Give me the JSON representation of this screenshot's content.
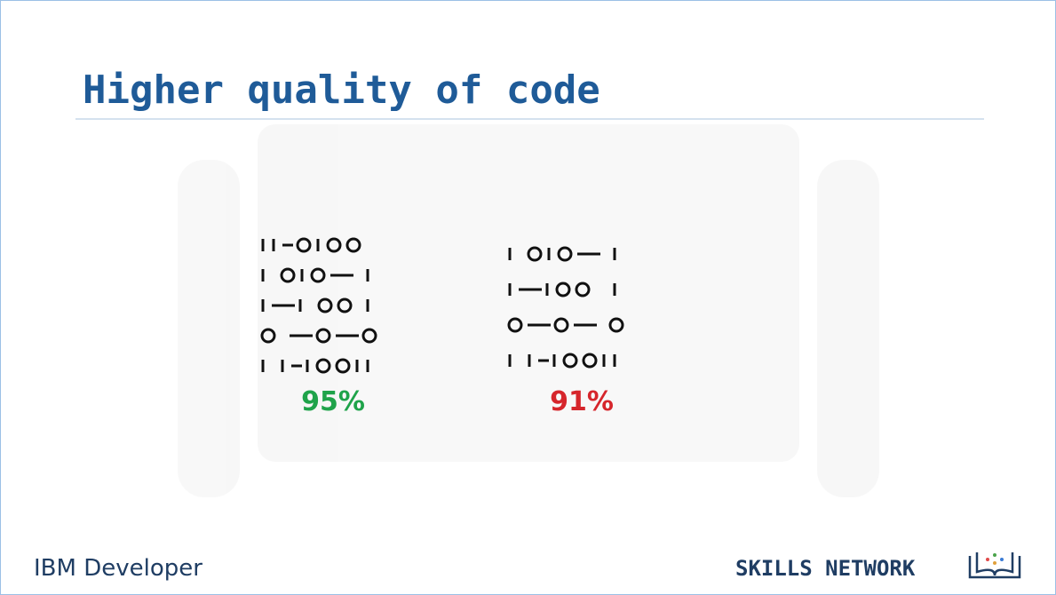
{
  "header": {
    "title": "Higher quality of code"
  },
  "samples": [
    {
      "score": "95%"
    },
    {
      "score": "91%"
    }
  ],
  "footer": {
    "left": "IBM Developer",
    "right": "SKILLS NETWORK"
  }
}
